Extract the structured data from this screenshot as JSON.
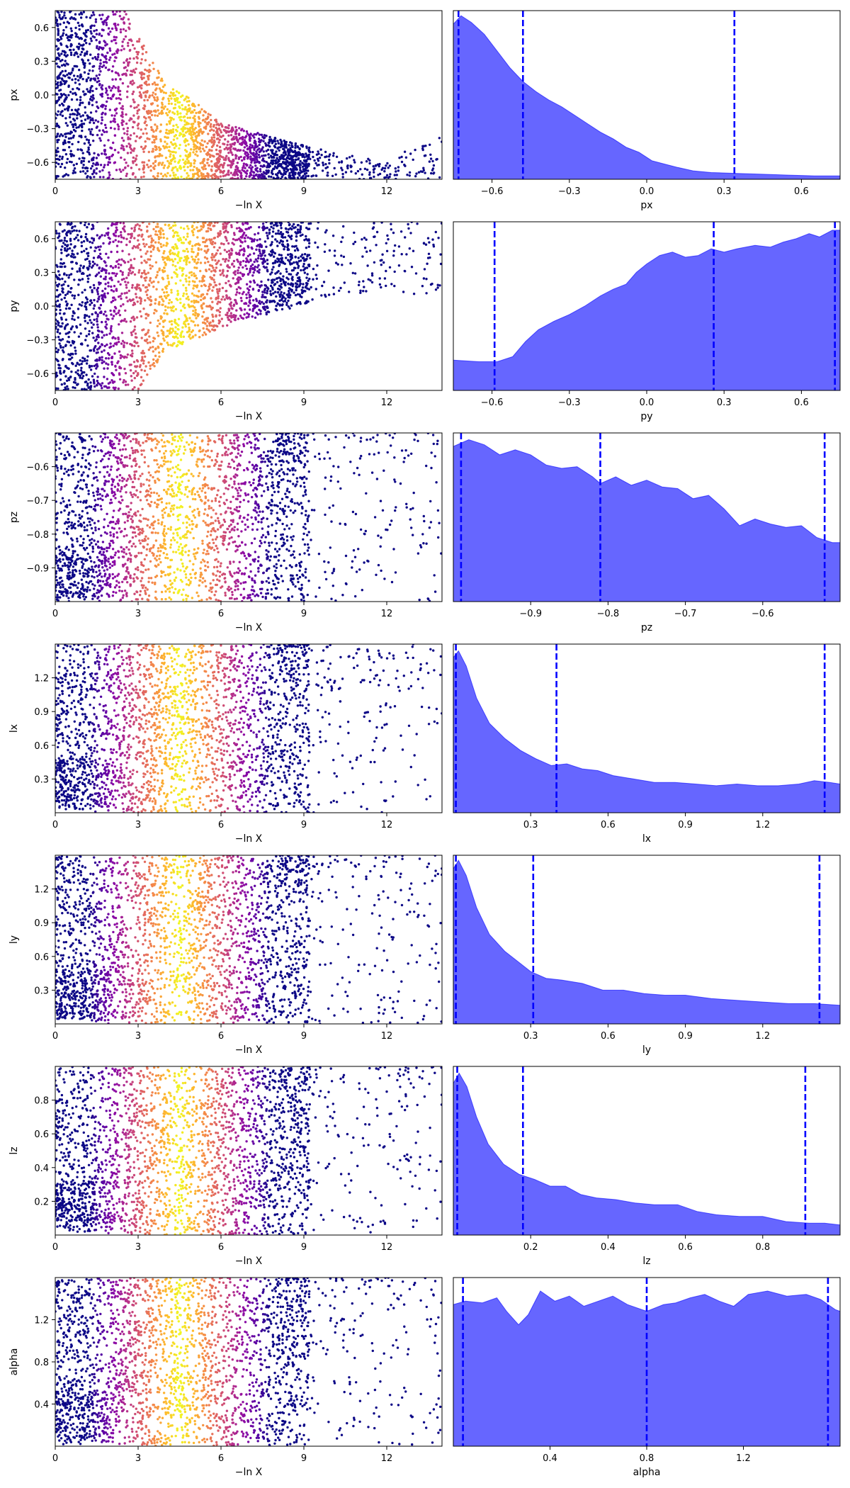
{
  "chart_data": [
    {
      "type": "scatter",
      "ylabel": "px",
      "xlabel": "−ln X",
      "xlim": [
        0,
        14
      ],
      "ylim": [
        -0.75,
        0.75
      ],
      "xticks": [
        "0",
        "3",
        "6",
        "9",
        "12"
      ],
      "yticks": [
        "0.6",
        "0.3",
        "0.0",
        "−0.3",
        "−0.6"
      ],
      "yticks_values": [
        0.6,
        0.3,
        0.0,
        -0.3,
        -0.6
      ],
      "colormap": "plasma",
      "color_peak_x": 4.5,
      "envelope": [
        [
          0,
          0.75
        ],
        [
          2.5,
          0.75
        ],
        [
          4,
          0.1
        ],
        [
          5,
          -0.05
        ],
        [
          6,
          -0.25
        ],
        [
          9,
          -0.45
        ],
        [
          12,
          -0.6
        ],
        [
          14,
          -0.3
        ]
      ]
    },
    {
      "type": "area",
      "xlabel": "px",
      "xlim": [
        -0.75,
        0.75
      ],
      "xticks": [
        "−0.6",
        "−0.3",
        "0.0",
        "0.3",
        "0.6"
      ],
      "xticks_values": [
        -0.6,
        -0.3,
        0.0,
        0.3,
        0.6
      ],
      "density": [
        [
          -0.75,
          0.92
        ],
        [
          -0.72,
          0.97
        ],
        [
          -0.68,
          0.93
        ],
        [
          -0.63,
          0.86
        ],
        [
          -0.58,
          0.76
        ],
        [
          -0.53,
          0.66
        ],
        [
          -0.48,
          0.58
        ],
        [
          -0.43,
          0.52
        ],
        [
          -0.38,
          0.47
        ],
        [
          -0.33,
          0.43
        ],
        [
          -0.28,
          0.38
        ],
        [
          -0.23,
          0.33
        ],
        [
          -0.18,
          0.28
        ],
        [
          -0.13,
          0.24
        ],
        [
          -0.08,
          0.19
        ],
        [
          -0.03,
          0.16
        ],
        [
          0.02,
          0.11
        ],
        [
          0.07,
          0.09
        ],
        [
          0.12,
          0.07
        ],
        [
          0.18,
          0.05
        ],
        [
          0.25,
          0.04
        ],
        [
          0.35,
          0.035
        ],
        [
          0.45,
          0.03
        ],
        [
          0.55,
          0.025
        ],
        [
          0.65,
          0.02
        ],
        [
          0.75,
          0.02
        ]
      ],
      "quantile_lines": [
        -0.73,
        -0.48,
        0.34
      ],
      "fill_color": "#6666ff",
      "line_color": "#0000ff"
    },
    {
      "type": "scatter",
      "ylabel": "py",
      "xlabel": "−ln X",
      "xlim": [
        0,
        14
      ],
      "ylim": [
        -0.75,
        0.75
      ],
      "xticks": [
        "0",
        "3",
        "6",
        "9",
        "12"
      ],
      "yticks": [
        "0.6",
        "0.3",
        "0.0",
        "−0.3",
        "−0.6"
      ],
      "yticks_values": [
        0.6,
        0.3,
        0.0,
        -0.3,
        -0.6
      ],
      "colormap": "plasma",
      "color_peak_x": 4.5,
      "envelope": [
        [
          0,
          -0.75
        ],
        [
          3,
          -0.75
        ],
        [
          4,
          -0.4
        ],
        [
          6,
          -0.2
        ],
        [
          8,
          -0.05
        ],
        [
          10,
          0.05
        ],
        [
          12,
          0.15
        ],
        [
          14,
          0.05
        ]
      ]
    },
    {
      "type": "area",
      "xlabel": "py",
      "xlim": [
        -0.75,
        0.75
      ],
      "xticks": [
        "−0.6",
        "−0.3",
        "0.0",
        "0.3",
        "0.6"
      ],
      "xticks_values": [
        -0.6,
        -0.3,
        0.0,
        0.3,
        0.6
      ],
      "density": [
        [
          -0.75,
          0.18
        ],
        [
          -0.65,
          0.17
        ],
        [
          -0.58,
          0.17
        ],
        [
          -0.52,
          0.2
        ],
        [
          -0.47,
          0.29
        ],
        [
          -0.42,
          0.36
        ],
        [
          -0.36,
          0.41
        ],
        [
          -0.3,
          0.45
        ],
        [
          -0.24,
          0.5
        ],
        [
          -0.18,
          0.56
        ],
        [
          -0.13,
          0.6
        ],
        [
          -0.08,
          0.63
        ],
        [
          -0.04,
          0.7
        ],
        [
          0.0,
          0.75
        ],
        [
          0.05,
          0.8
        ],
        [
          0.1,
          0.82
        ],
        [
          0.15,
          0.79
        ],
        [
          0.2,
          0.8
        ],
        [
          0.25,
          0.84
        ],
        [
          0.3,
          0.82
        ],
        [
          0.35,
          0.84
        ],
        [
          0.42,
          0.86
        ],
        [
          0.48,
          0.85
        ],
        [
          0.53,
          0.88
        ],
        [
          0.58,
          0.9
        ],
        [
          0.63,
          0.93
        ],
        [
          0.67,
          0.91
        ],
        [
          0.72,
          0.95
        ],
        [
          0.75,
          0.95
        ]
      ],
      "quantile_lines": [
        -0.59,
        0.26,
        0.73
      ],
      "fill_color": "#6666ff",
      "line_color": "#0000ff"
    },
    {
      "type": "scatter",
      "ylabel": "pz",
      "xlabel": "−ln X",
      "xlim": [
        0,
        14
      ],
      "ylim": [
        -1.0,
        -0.5
      ],
      "xticks": [
        "0",
        "3",
        "6",
        "9",
        "12"
      ],
      "yticks": [
        "−0.6",
        "−0.7",
        "−0.8",
        "−0.9"
      ],
      "yticks_values": [
        -0.6,
        -0.7,
        -0.8,
        -0.9
      ],
      "colormap": "plasma",
      "color_peak_x": 4.5,
      "envelope": [
        [
          0,
          -1.0
        ],
        [
          14,
          -1.0
        ]
      ]
    },
    {
      "type": "area",
      "xlabel": "pz",
      "xlim": [
        -1.0,
        -0.5
      ],
      "xticks": [
        "−0.9",
        "−0.8",
        "−0.7",
        "−0.6"
      ],
      "xticks_values": [
        -0.9,
        -0.8,
        -0.7,
        -0.6
      ],
      "density": [
        [
          -1.0,
          0.92
        ],
        [
          -0.98,
          0.96
        ],
        [
          -0.96,
          0.93
        ],
        [
          -0.94,
          0.87
        ],
        [
          -0.92,
          0.9
        ],
        [
          -0.9,
          0.87
        ],
        [
          -0.88,
          0.81
        ],
        [
          -0.86,
          0.79
        ],
        [
          -0.84,
          0.8
        ],
        [
          -0.82,
          0.74
        ],
        [
          -0.81,
          0.7
        ],
        [
          -0.79,
          0.74
        ],
        [
          -0.77,
          0.69
        ],
        [
          -0.75,
          0.72
        ],
        [
          -0.73,
          0.68
        ],
        [
          -0.71,
          0.67
        ],
        [
          -0.69,
          0.61
        ],
        [
          -0.67,
          0.63
        ],
        [
          -0.65,
          0.55
        ],
        [
          -0.63,
          0.45
        ],
        [
          -0.61,
          0.49
        ],
        [
          -0.59,
          0.46
        ],
        [
          -0.57,
          0.44
        ],
        [
          -0.55,
          0.45
        ],
        [
          -0.53,
          0.38
        ],
        [
          -0.51,
          0.35
        ],
        [
          -0.5,
          0.35
        ]
      ],
      "quantile_lines": [
        -0.99,
        -0.81,
        -0.52
      ],
      "fill_color": "#6666ff",
      "line_color": "#0000ff"
    },
    {
      "type": "scatter",
      "ylabel": "lx",
      "xlabel": "−ln X",
      "xlim": [
        0,
        14
      ],
      "ylim": [
        0.0,
        1.5
      ],
      "xticks": [
        "0",
        "3",
        "6",
        "9",
        "12"
      ],
      "yticks": [
        "1.2",
        "0.9",
        "0.6",
        "0.3"
      ],
      "yticks_values": [
        1.2,
        0.9,
        0.6,
        0.3
      ],
      "colormap": "plasma",
      "color_peak_x": 4.5,
      "envelope": [
        [
          0,
          0.2
        ],
        [
          1.5,
          0.05
        ],
        [
          3,
          0.0
        ],
        [
          14,
          0.0
        ]
      ]
    },
    {
      "type": "area",
      "xlabel": "lx",
      "xlim": [
        0.0,
        1.5
      ],
      "xticks": [
        "0.3",
        "0.6",
        "0.9",
        "1.2"
      ],
      "xticks_values": [
        0.3,
        0.6,
        0.9,
        1.2
      ],
      "density": [
        [
          0.0,
          0.92
        ],
        [
          0.02,
          0.96
        ],
        [
          0.05,
          0.87
        ],
        [
          0.09,
          0.68
        ],
        [
          0.14,
          0.53
        ],
        [
          0.2,
          0.44
        ],
        [
          0.26,
          0.37
        ],
        [
          0.32,
          0.32
        ],
        [
          0.38,
          0.28
        ],
        [
          0.44,
          0.29
        ],
        [
          0.5,
          0.26
        ],
        [
          0.56,
          0.25
        ],
        [
          0.62,
          0.22
        ],
        [
          0.7,
          0.2
        ],
        [
          0.78,
          0.18
        ],
        [
          0.86,
          0.18
        ],
        [
          0.94,
          0.17
        ],
        [
          1.02,
          0.16
        ],
        [
          1.1,
          0.17
        ],
        [
          1.18,
          0.16
        ],
        [
          1.26,
          0.16
        ],
        [
          1.34,
          0.17
        ],
        [
          1.4,
          0.19
        ],
        [
          1.46,
          0.18
        ],
        [
          1.5,
          0.17
        ]
      ],
      "quantile_lines": [
        0.01,
        0.4,
        1.44
      ],
      "fill_color": "#6666ff",
      "line_color": "#0000ff"
    },
    {
      "type": "scatter",
      "ylabel": "ly",
      "xlabel": "−ln X",
      "xlim": [
        0,
        14
      ],
      "ylim": [
        0.0,
        1.5
      ],
      "xticks": [
        "0",
        "3",
        "6",
        "9",
        "12"
      ],
      "yticks": [
        "1.2",
        "0.9",
        "0.6",
        "0.3"
      ],
      "yticks_values": [
        1.2,
        0.9,
        0.6,
        0.3
      ],
      "colormap": "plasma",
      "color_peak_x": 4.5,
      "envelope": [
        [
          0,
          0.2
        ],
        [
          1.5,
          0.05
        ],
        [
          3,
          0.0
        ],
        [
          14,
          0.0
        ]
      ]
    },
    {
      "type": "area",
      "xlabel": "ly",
      "xlim": [
        0.0,
        1.5
      ],
      "xticks": [
        "0.3",
        "0.6",
        "0.9",
        "1.2"
      ],
      "xticks_values": [
        0.3,
        0.6,
        0.9,
        1.2
      ],
      "density": [
        [
          0.0,
          0.92
        ],
        [
          0.02,
          0.97
        ],
        [
          0.05,
          0.88
        ],
        [
          0.09,
          0.69
        ],
        [
          0.14,
          0.53
        ],
        [
          0.2,
          0.43
        ],
        [
          0.25,
          0.37
        ],
        [
          0.3,
          0.31
        ],
        [
          0.36,
          0.27
        ],
        [
          0.42,
          0.26
        ],
        [
          0.5,
          0.24
        ],
        [
          0.58,
          0.2
        ],
        [
          0.66,
          0.2
        ],
        [
          0.74,
          0.18
        ],
        [
          0.82,
          0.17
        ],
        [
          0.9,
          0.17
        ],
        [
          1.0,
          0.15
        ],
        [
          1.1,
          0.14
        ],
        [
          1.2,
          0.13
        ],
        [
          1.3,
          0.12
        ],
        [
          1.4,
          0.12
        ],
        [
          1.5,
          0.11
        ]
      ],
      "quantile_lines": [
        0.01,
        0.31,
        1.42
      ],
      "fill_color": "#6666ff",
      "line_color": "#0000ff"
    },
    {
      "type": "scatter",
      "ylabel": "lz",
      "xlabel": "−ln X",
      "xlim": [
        0,
        14
      ],
      "ylim": [
        0.0,
        1.0
      ],
      "xticks": [
        "0",
        "3",
        "6",
        "9",
        "12"
      ],
      "yticks": [
        "0.8",
        "0.6",
        "0.4",
        "0.2"
      ],
      "yticks_values": [
        0.8,
        0.6,
        0.4,
        0.2
      ],
      "colormap": "plasma",
      "color_peak_x": 4.5,
      "envelope": [
        [
          0,
          0.2
        ],
        [
          1.5,
          0.05
        ],
        [
          3,
          0.0
        ],
        [
          14,
          0.0
        ]
      ]
    },
    {
      "type": "area",
      "xlabel": "lz",
      "xlim": [
        0.0,
        1.0
      ],
      "xticks": [
        "0.2",
        "0.4",
        "0.6",
        "0.8"
      ],
      "xticks_values": [
        0.2,
        0.4,
        0.6,
        0.8
      ],
      "density": [
        [
          0.0,
          0.9
        ],
        [
          0.015,
          0.96
        ],
        [
          0.035,
          0.88
        ],
        [
          0.06,
          0.7
        ],
        [
          0.09,
          0.54
        ],
        [
          0.13,
          0.42
        ],
        [
          0.17,
          0.36
        ],
        [
          0.21,
          0.33
        ],
        [
          0.25,
          0.29
        ],
        [
          0.29,
          0.29
        ],
        [
          0.33,
          0.24
        ],
        [
          0.37,
          0.22
        ],
        [
          0.42,
          0.21
        ],
        [
          0.47,
          0.19
        ],
        [
          0.52,
          0.18
        ],
        [
          0.58,
          0.18
        ],
        [
          0.63,
          0.14
        ],
        [
          0.68,
          0.12
        ],
        [
          0.74,
          0.11
        ],
        [
          0.8,
          0.11
        ],
        [
          0.86,
          0.08
        ],
        [
          0.92,
          0.07
        ],
        [
          0.96,
          0.07
        ],
        [
          1.0,
          0.06
        ]
      ],
      "quantile_lines": [
        0.01,
        0.18,
        0.91
      ],
      "fill_color": "#6666ff",
      "line_color": "#0000ff"
    },
    {
      "type": "scatter",
      "ylabel": "alpha",
      "xlabel": "−ln X",
      "xlim": [
        0,
        14
      ],
      "ylim": [
        0.0,
        1.6
      ],
      "xticks": [
        "0",
        "3",
        "6",
        "9",
        "12"
      ],
      "yticks": [
        "1.2",
        "0.8",
        "0.4"
      ],
      "yticks_values": [
        1.2,
        0.8,
        0.4
      ],
      "colormap": "plasma",
      "color_peak_x": 4.5,
      "envelope": [
        [
          0,
          0.2
        ],
        [
          1.5,
          0.05
        ],
        [
          3,
          0.0
        ],
        [
          14,
          0.0
        ]
      ]
    },
    {
      "type": "area",
      "xlabel": "alpha",
      "xlim": [
        0.0,
        1.6
      ],
      "xticks": [
        "0.4",
        "0.8",
        "1.2"
      ],
      "xticks_values": [
        0.4,
        0.8,
        1.2
      ],
      "density": [
        [
          0.0,
          0.84
        ],
        [
          0.05,
          0.86
        ],
        [
          0.12,
          0.85
        ],
        [
          0.18,
          0.88
        ],
        [
          0.22,
          0.8
        ],
        [
          0.27,
          0.72
        ],
        [
          0.31,
          0.78
        ],
        [
          0.36,
          0.92
        ],
        [
          0.42,
          0.86
        ],
        [
          0.48,
          0.89
        ],
        [
          0.54,
          0.83
        ],
        [
          0.6,
          0.86
        ],
        [
          0.66,
          0.89
        ],
        [
          0.72,
          0.84
        ],
        [
          0.8,
          0.8
        ],
        [
          0.87,
          0.84
        ],
        [
          0.92,
          0.85
        ],
        [
          0.98,
          0.88
        ],
        [
          1.04,
          0.9
        ],
        [
          1.1,
          0.86
        ],
        [
          1.16,
          0.83
        ],
        [
          1.22,
          0.9
        ],
        [
          1.3,
          0.92
        ],
        [
          1.38,
          0.89
        ],
        [
          1.46,
          0.9
        ],
        [
          1.52,
          0.87
        ],
        [
          1.58,
          0.81
        ],
        [
          1.6,
          0.8
        ]
      ],
      "quantile_lines": [
        0.04,
        0.8,
        1.55
      ],
      "fill_color": "#6666ff",
      "line_color": "#0000ff"
    }
  ]
}
